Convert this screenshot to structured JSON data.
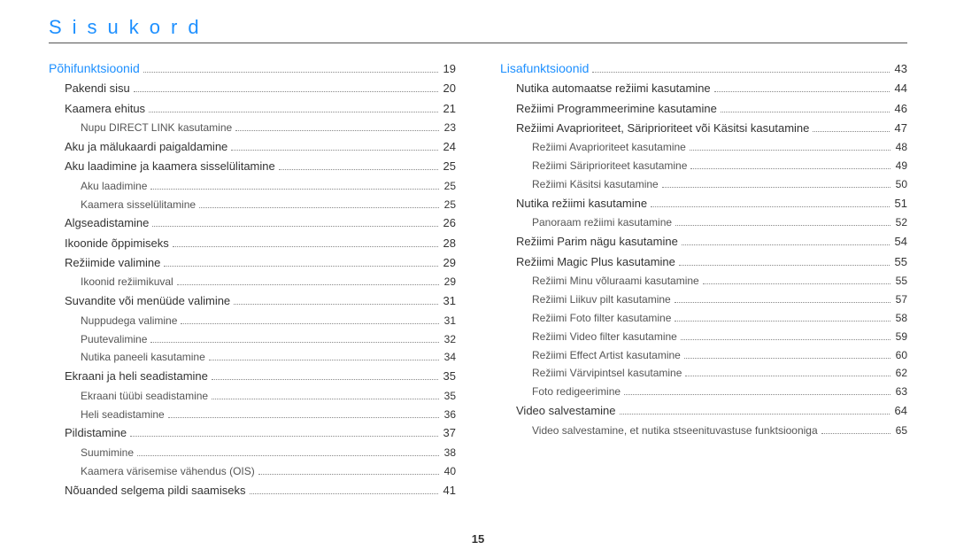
{
  "page_title": "Sisukord",
  "page_number": "15",
  "colors": {
    "accent": "#1e90ff",
    "text": "#333333",
    "subtext": "#555555",
    "dots": "#888888",
    "rule": "#555555",
    "background": "#ffffff"
  },
  "columns": [
    {
      "entries": [
        {
          "label": "Põhifunktsioonid",
          "page": "19",
          "level": 0,
          "section": true
        },
        {
          "label": "Pakendi sisu",
          "page": "20",
          "level": 1
        },
        {
          "label": "Kaamera ehitus",
          "page": "21",
          "level": 1
        },
        {
          "label": "Nupu DIRECT LINK kasutamine",
          "page": "23",
          "level": 2
        },
        {
          "label": "Aku ja mälukaardi paigaldamine",
          "page": "24",
          "level": 1
        },
        {
          "label": "Aku laadimine ja kaamera sisselülitamine",
          "page": "25",
          "level": 1
        },
        {
          "label": "Aku laadimine",
          "page": "25",
          "level": 2
        },
        {
          "label": "Kaamera sisselülitamine",
          "page": "25",
          "level": 2
        },
        {
          "label": "Algseadistamine",
          "page": "26",
          "level": 1
        },
        {
          "label": "Ikoonide õppimiseks",
          "page": "28",
          "level": 1
        },
        {
          "label": "Režiimide valimine",
          "page": "29",
          "level": 1
        },
        {
          "label": "Ikoonid režiimikuval",
          "page": "29",
          "level": 2
        },
        {
          "label": "Suvandite või menüüde valimine",
          "page": "31",
          "level": 1
        },
        {
          "label": "Nuppudega valimine",
          "page": "31",
          "level": 2
        },
        {
          "label": "Puutevalimine",
          "page": "32",
          "level": 2
        },
        {
          "label": "Nutika paneeli kasutamine",
          "page": "34",
          "level": 2
        },
        {
          "label": "Ekraani ja heli seadistamine",
          "page": "35",
          "level": 1
        },
        {
          "label": "Ekraani tüübi seadistamine",
          "page": "35",
          "level": 2
        },
        {
          "label": "Heli seadistamine",
          "page": "36",
          "level": 2
        },
        {
          "label": "Pildistamine",
          "page": "37",
          "level": 1
        },
        {
          "label": "Suumimine",
          "page": "38",
          "level": 2
        },
        {
          "label": "Kaamera värisemise vähendus (OIS)",
          "page": "40",
          "level": 2
        },
        {
          "label": "Nõuanded selgema pildi saamiseks",
          "page": "41",
          "level": 1
        }
      ]
    },
    {
      "entries": [
        {
          "label": "Lisafunktsioonid",
          "page": "43",
          "level": 0,
          "section": true
        },
        {
          "label": "Nutika automaatse režiimi kasutamine",
          "page": "44",
          "level": 1
        },
        {
          "label": "Režiimi Programmeerimine kasutamine",
          "page": "46",
          "level": 1
        },
        {
          "label": "Režiimi Avaprioriteet, Säriprioriteet või Käsitsi kasutamine",
          "page": "47",
          "level": 1
        },
        {
          "label": "Režiimi Avaprioriteet kasutamine",
          "page": "48",
          "level": 2
        },
        {
          "label": "Režiimi Säriprioriteet kasutamine",
          "page": "49",
          "level": 2
        },
        {
          "label": "Režiimi Käsitsi kasutamine",
          "page": "50",
          "level": 2
        },
        {
          "label": "Nutika režiimi kasutamine",
          "page": "51",
          "level": 1
        },
        {
          "label": "Panoraam režiimi kasutamine",
          "page": "52",
          "level": 2
        },
        {
          "label": "Režiimi Parim nägu kasutamine",
          "page": "54",
          "level": 1
        },
        {
          "label": "Režiimi Magic Plus kasutamine",
          "page": "55",
          "level": 1
        },
        {
          "label": "Režiimi Minu võluraami kasutamine",
          "page": "55",
          "level": 2
        },
        {
          "label": "Režiimi Liikuv pilt kasutamine",
          "page": "57",
          "level": 2
        },
        {
          "label": "Režiimi Foto filter kasutamine",
          "page": "58",
          "level": 2
        },
        {
          "label": "Režiimi Video filter kasutamine",
          "page": "59",
          "level": 2
        },
        {
          "label": "Režiimi Effect Artist kasutamine",
          "page": "60",
          "level": 2
        },
        {
          "label": "Režiimi Värvipintsel kasutamine",
          "page": "62",
          "level": 2
        },
        {
          "label": "Foto redigeerimine",
          "page": "63",
          "level": 2
        },
        {
          "label": "Video salvestamine",
          "page": "64",
          "level": 1
        },
        {
          "label": "Video salvestamine, et nutika stseenituvastuse funktsiooniga",
          "page": "65",
          "level": 2
        }
      ]
    }
  ]
}
